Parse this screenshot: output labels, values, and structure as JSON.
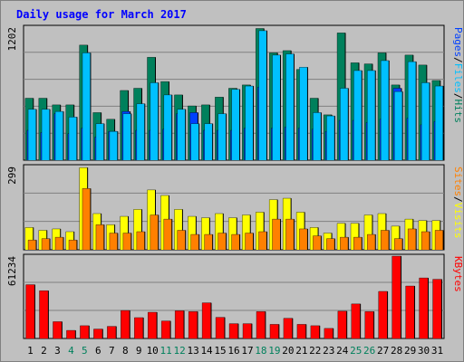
{
  "title": "Daily usage for March 2017",
  "colors": {
    "background": "#c0c0c0",
    "plot_bg": "#c0c0c0",
    "title": "#0000ff",
    "hits": "#00805c",
    "files": "#00c0ff",
    "pages": "#0040ff",
    "visits": "#ffff00",
    "sites": "#ff8000",
    "kbytes": "#ff0000",
    "weekend": "#00805c",
    "weekday": "#000000",
    "separator_slash": "#000000"
  },
  "chart_data": [
    {
      "type": "bar",
      "panel": "hits-files-pages",
      "ymax_label": "1202",
      "ylim": [
        0,
        1202
      ],
      "grid": true,
      "legend": [
        "Pages",
        "/",
        "Files",
        "/",
        "Hits"
      ],
      "categories": [
        "1",
        "2",
        "3",
        "4",
        "5",
        "6",
        "7",
        "8",
        "9",
        "10",
        "11",
        "12",
        "13",
        "14",
        "15",
        "16",
        "17",
        "18",
        "19",
        "20",
        "21",
        "22",
        "23",
        "24",
        "25",
        "26",
        "27",
        "28",
        "29",
        "30",
        "31"
      ],
      "series": [
        {
          "name": "Hits",
          "values": [
            560,
            560,
            500,
            500,
            1040,
            430,
            370,
            630,
            650,
            930,
            710,
            590,
            490,
            500,
            570,
            650,
            680,
            1190,
            970,
            990,
            820,
            560,
            410,
            1150,
            880,
            870,
            970,
            680,
            950,
            860,
            720
          ]
        },
        {
          "name": "Files",
          "values": [
            460,
            460,
            440,
            390,
            970,
            330,
            260,
            420,
            510,
            700,
            590,
            460,
            330,
            330,
            420,
            640,
            670,
            1170,
            950,
            960,
            840,
            430,
            400,
            650,
            810,
            810,
            900,
            620,
            890,
            700,
            670
          ]
        },
        {
          "name": "Pages",
          "values": [
            270,
            250,
            420,
            240,
            290,
            210,
            260,
            440,
            270,
            270,
            280,
            420,
            430,
            270,
            270,
            270,
            290,
            660,
            290,
            300,
            290,
            280,
            260,
            360,
            360,
            340,
            370,
            650,
            380,
            320,
            350
          ]
        }
      ]
    },
    {
      "type": "bar",
      "panel": "visits-sites",
      "ymax_label": "299",
      "ylim": [
        0,
        299
      ],
      "grid": true,
      "legend": [
        "Sites",
        "/",
        "Visits"
      ],
      "categories": [
        "1",
        "2",
        "3",
        "4",
        "5",
        "6",
        "7",
        "8",
        "9",
        "10",
        "11",
        "12",
        "13",
        "14",
        "15",
        "16",
        "17",
        "18",
        "19",
        "20",
        "21",
        "22",
        "23",
        "24",
        "25",
        "26",
        "27",
        "28",
        "29",
        "30",
        "31"
      ],
      "series": [
        {
          "name": "Visits",
          "values": [
            80,
            70,
            75,
            65,
            295,
            130,
            90,
            120,
            145,
            215,
            195,
            145,
            120,
            115,
            130,
            115,
            125,
            135,
            180,
            185,
            135,
            80,
            60,
            95,
            95,
            125,
            130,
            85,
            110,
            105,
            105
          ]
        },
        {
          "name": "Sites",
          "values": [
            35,
            40,
            45,
            35,
            220,
            90,
            60,
            60,
            65,
            125,
            110,
            70,
            55,
            55,
            60,
            55,
            60,
            65,
            110,
            110,
            75,
            50,
            40,
            45,
            45,
            55,
            70,
            40,
            75,
            65,
            70
          ]
        }
      ]
    },
    {
      "type": "bar",
      "panel": "kbytes",
      "ymax_label": "61234",
      "ylim": [
        0,
        61234
      ],
      "grid": true,
      "legend": [
        "KBytes"
      ],
      "categories": [
        "1",
        "2",
        "3",
        "4",
        "5",
        "6",
        "7",
        "8",
        "9",
        "10",
        "11",
        "12",
        "13",
        "14",
        "15",
        "16",
        "17",
        "18",
        "19",
        "20",
        "21",
        "22",
        "23",
        "24",
        "25",
        "26",
        "27",
        "28",
        "29",
        "30",
        "31"
      ],
      "series": [
        {
          "name": "KBytes",
          "values": [
            40000,
            35500,
            12500,
            6000,
            9500,
            7000,
            9000,
            20800,
            15500,
            19500,
            13000,
            20600,
            20000,
            26500,
            15700,
            11000,
            11000,
            20000,
            10500,
            15000,
            10500,
            9500,
            7500,
            20300,
            25700,
            20000,
            35000,
            61200,
            39000,
            45000,
            44000
          ]
        }
      ]
    }
  ],
  "x_axis": {
    "labels": [
      "1",
      "2",
      "3",
      "4",
      "5",
      "6",
      "7",
      "8",
      "9",
      "10",
      "11",
      "12",
      "13",
      "14",
      "15",
      "16",
      "17",
      "18",
      "19",
      "20",
      "21",
      "22",
      "23",
      "24",
      "25",
      "26",
      "27",
      "28",
      "29",
      "30",
      "31"
    ],
    "weekend": [
      false,
      false,
      false,
      true,
      true,
      false,
      false,
      false,
      false,
      false,
      true,
      true,
      false,
      false,
      false,
      false,
      false,
      true,
      true,
      false,
      false,
      false,
      false,
      false,
      true,
      true,
      false,
      false,
      false,
      false,
      false
    ]
  }
}
